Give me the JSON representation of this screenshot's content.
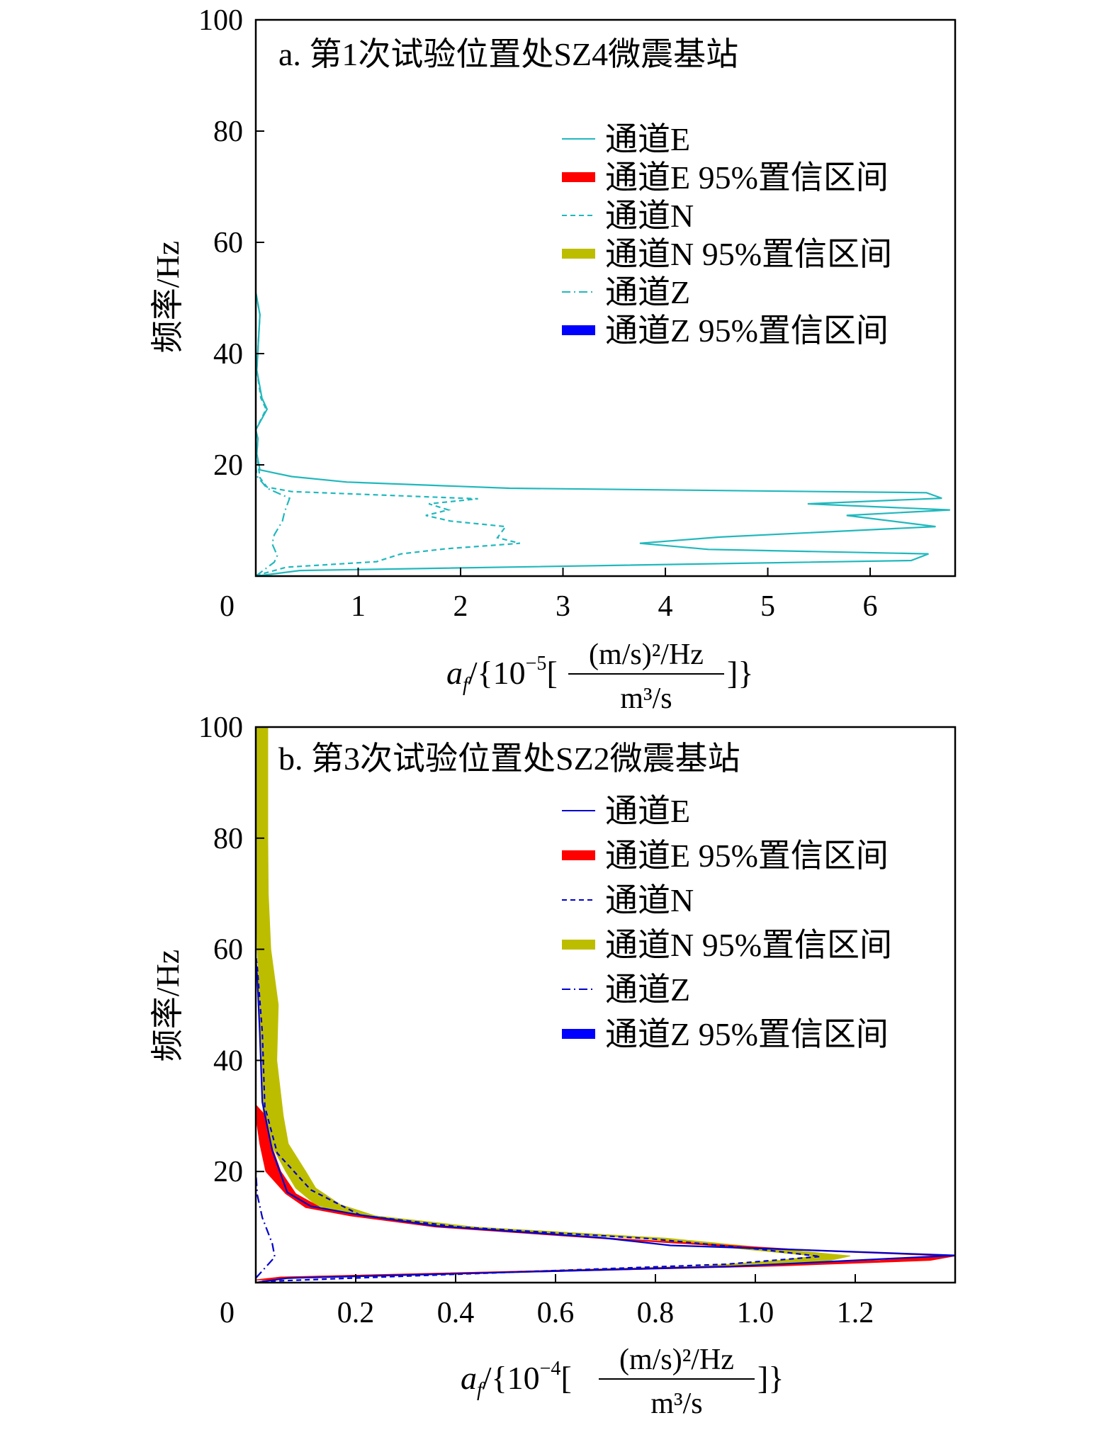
{
  "chart_data": [
    {
      "type": "line",
      "title": "a. 第1次试验位置处SZ4微震基站",
      "ylabel": "频率/Hz",
      "xlabel": {
        "symbol": "a",
        "sub": "f",
        "prefix": "/{10",
        "exponent": "−5",
        "open": "[",
        "numerator": "(m/s)²/Hz",
        "denominator": "m³/s",
        "close": "]}"
      },
      "xlim": [
        0,
        6.83
      ],
      "ylim": [
        0,
        100
      ],
      "xticks": [
        "1",
        "2",
        "3",
        "4",
        "5",
        "6"
      ],
      "xtick_values": [
        1,
        2,
        3,
        4,
        5,
        6
      ],
      "yticks": [
        "20",
        "40",
        "60",
        "80",
        "100"
      ],
      "ytick_values": [
        20,
        40,
        60,
        80,
        100
      ],
      "origin_label": "0",
      "legend_position": "top-right",
      "legend": [
        {
          "label": "通道E",
          "style": "solid",
          "color": "#21b8bd"
        },
        {
          "label": "通道E 95%置信区间",
          "style": "band",
          "color": "#ff0000"
        },
        {
          "label": "通道N",
          "style": "dashed",
          "color": "#21b8bd"
        },
        {
          "label": "通道N 95%置信区间",
          "style": "band",
          "color": "#bdbd00"
        },
        {
          "label": "通道Z",
          "style": "dashdot",
          "color": "#21b8bd"
        },
        {
          "label": "通道Z 95%置信区间",
          "style": "band",
          "color": "#0000ff"
        }
      ],
      "series": [
        {
          "name": "通道E",
          "style": "solid",
          "color": "#21b8bd",
          "x": [
            0,
            0.43,
            6.4,
            6.57,
            4.42,
            3.75,
            4.52,
            6.64,
            5.77,
            6.78,
            5.39,
            6.7,
            6.55,
            2.48,
            0.89,
            0.35,
            0.04,
            0.01,
            0.02,
            0,
            0.11,
            0.06,
            0.01,
            0.04,
            0
          ],
          "y": [
            0,
            1.0,
            2.8,
            4.0,
            4.8,
            5.9,
            7.0,
            8.9,
            10.9,
            11.9,
            13.0,
            14.0,
            15.0,
            15.8,
            16.9,
            17.9,
            19.1,
            22,
            24.7,
            26.3,
            30,
            32,
            37,
            47,
            51
          ]
        },
        {
          "name": "通道N",
          "style": "dashed",
          "color": "#21b8bd",
          "x": [
            0,
            0.06,
            0.3,
            1.18,
            1.42,
            1.85,
            2.58,
            2.36,
            2.44,
            1.9,
            1.66,
            1.88,
            1.69,
            2.17,
            0.35,
            0.11,
            0.04,
            0.01,
            0.02,
            0,
            0.1,
            0.05,
            0.01,
            0.04,
            0
          ],
          "y": [
            0,
            0.4,
            1.6,
            2.6,
            4.0,
            4.9,
            5.9,
            6.9,
            8.9,
            9.9,
            10.9,
            11.9,
            13.0,
            13.9,
            15.2,
            16.0,
            17.7,
            22,
            24.7,
            26.3,
            30,
            32,
            37,
            47,
            51
          ]
        },
        {
          "name": "通道Z",
          "style": "dashdot",
          "color": "#21b8bd",
          "x": [
            0,
            0.18,
            0.21,
            0.16,
            0.18,
            0.26,
            0.28,
            0.33,
            0.11,
            0.01,
            0
          ],
          "y": [
            0,
            2.5,
            3.7,
            5.8,
            7.4,
            9.9,
            11.5,
            14.0,
            15.8,
            18,
            20
          ]
        }
      ],
      "bands": []
    },
    {
      "type": "line",
      "title": "b. 第3次试验位置处SZ2微震基站",
      "ylabel": "频率/Hz",
      "xlabel": {
        "symbol": "a",
        "sub": "f",
        "prefix": "/{10",
        "exponent": "−4",
        "open": "[",
        "numerator": "(m/s)²/Hz",
        "denominator": "m³/s",
        "close": "]}"
      },
      "xlim": [
        0,
        1.4
      ],
      "ylim": [
        0,
        100
      ],
      "xticks": [
        "0.2",
        "0.4",
        "0.6",
        "0.8",
        "1.0",
        "1.2"
      ],
      "xtick_values": [
        0.2,
        0.4,
        0.6,
        0.8,
        1.0,
        1.2
      ],
      "yticks": [
        "20",
        "40",
        "60",
        "80",
        "100"
      ],
      "ytick_values": [
        20,
        40,
        60,
        80,
        100
      ],
      "origin_label": "0",
      "legend_position": "top-right",
      "legend": [
        {
          "label": "通道E",
          "style": "solid",
          "color": "#0000cc"
        },
        {
          "label": "通道E 95%置信区间",
          "style": "band",
          "color": "#ff0000"
        },
        {
          "label": "通道N",
          "style": "dashed",
          "color": "#0000cc"
        },
        {
          "label": "通道N 95%置信区间",
          "style": "band",
          "color": "#bdbd00"
        },
        {
          "label": "通道Z",
          "style": "dashdot",
          "color": "#0000cc"
        },
        {
          "label": "通道Z 95%置信区间",
          "style": "band",
          "color": "#0000ff"
        }
      ],
      "bands": [
        {
          "name": "通道N 95%置信区间",
          "color": "#bdbd00",
          "y": [
            0.5,
            1,
            2,
            3,
            4,
            4.8,
            6,
            8,
            10,
            12,
            14,
            17,
            20,
            25,
            30,
            40,
            50,
            60,
            70,
            80,
            100
          ],
          "lower": [
            0,
            0.05,
            0.5,
            0.9,
            1.05,
            1.12,
            0.98,
            0.77,
            0.38,
            0.19,
            0.12,
            0.08,
            0.06,
            0.03,
            0.015,
            0.01,
            0.008,
            0.003,
            0,
            0,
            0
          ],
          "upper": [
            0.03,
            0.12,
            0.6,
            1.0,
            1.15,
            1.19,
            1.05,
            0.82,
            0.44,
            0.24,
            0.17,
            0.12,
            0.1,
            0.065,
            0.055,
            0.042,
            0.045,
            0.03,
            0.025,
            0.024,
            0.024
          ]
        },
        {
          "name": "通道E 95%置信区间",
          "color": "#ff0000",
          "y": [
            0.5,
            1,
            2,
            3,
            4,
            4.8,
            6,
            8,
            10,
            12,
            13.5,
            16,
            20,
            25,
            30,
            32
          ],
          "lower": [
            0,
            0.05,
            0.5,
            0.95,
            1.25,
            1.38,
            1.04,
            0.68,
            0.36,
            0.19,
            0.1,
            0.06,
            0.02,
            0.008,
            0,
            0
          ],
          "upper": [
            0.02,
            0.08,
            0.6,
            1.05,
            1.35,
            1.4,
            1.08,
            0.71,
            0.38,
            0.22,
            0.13,
            0.08,
            0.05,
            0.03,
            0.02,
            0
          ]
        }
      ],
      "series": [
        {
          "name": "通道E",
          "style": "solid",
          "color": "#0000cc",
          "x": [
            0,
            0.063,
            0.95,
            1.4,
            1.06,
            0.83,
            0.69,
            0.36,
            0.2,
            0.11,
            0.063,
            0.033,
            0.013,
            0.008,
            0.003,
            0
          ],
          "y": [
            0,
            0.8,
            2.9,
            4.9,
            6.0,
            6.7,
            8.1,
            10.2,
            12.3,
            13.75,
            16.25,
            23.75,
            32.5,
            45,
            55,
            58.3
          ]
        },
        {
          "name": "通道N",
          "style": "dashed",
          "color": "#0000cc",
          "x": [
            0.013,
            0.94,
            1.13,
            1.01,
            0.79,
            0.41,
            0.21,
            0.11,
            0.043,
            0.018,
            0.013,
            0.003,
            0
          ],
          "y": [
            0.2,
            3.3,
            4.7,
            6.0,
            7.9,
            10.0,
            12.1,
            16.7,
            23.3,
            31.7,
            45,
            56.7,
            59
          ]
        },
        {
          "name": "通道Z",
          "style": "dashdot",
          "color": "#0000cc",
          "x": [
            0,
            0.038,
            0.033,
            0.013,
            0.003,
            0
          ],
          "y": [
            0.8,
            4.6,
            7.0,
            11.7,
            15.8,
            20
          ]
        }
      ]
    }
  ]
}
